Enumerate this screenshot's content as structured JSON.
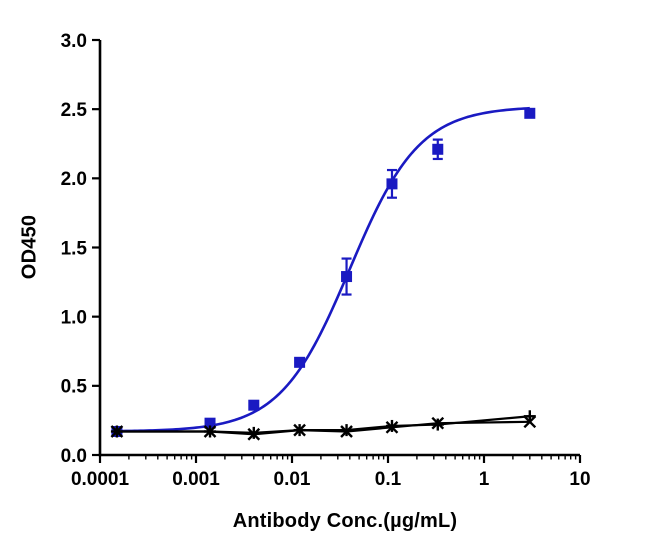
{
  "figure": {
    "background": "#ffffff",
    "axis_color": "#000000"
  },
  "chart_data": {
    "type": "line",
    "title": "",
    "xlabel": "Antibody Conc.(µg/mL)",
    "ylabel": "OD450",
    "x_scale": "log",
    "grid": false,
    "legend": "none",
    "xlim": [
      0.0001,
      10
    ],
    "ylim": [
      0,
      3
    ],
    "x_ticks": [
      0.0001,
      0.001,
      0.01,
      0.1,
      1,
      10
    ],
    "x_tick_labels": [
      "0.0001",
      "0.001",
      "0.01",
      "0.1",
      "1",
      "10"
    ],
    "y_ticks": [
      0,
      0.5,
      1,
      1.5,
      2,
      2.5,
      3
    ],
    "y_tick_labels": [
      "0.0",
      "0.5",
      "1.0",
      "1.5",
      "2.0",
      "2.5",
      "3.0"
    ],
    "x": [
      0.00015,
      0.0014,
      0.004,
      0.012,
      0.037,
      0.11,
      0.33,
      3
    ],
    "series": [
      {
        "name": "antibody-blue-squares",
        "color": "#1a1ac2",
        "marker": "square",
        "line": "sigmoid-fit",
        "fit": {
          "type": "4pl",
          "bottom": 0.17,
          "top": 2.52,
          "ec50": 0.04,
          "hill": 1.2
        },
        "values": [
          0.17,
          0.23,
          0.36,
          0.67,
          1.29,
          1.96,
          2.21,
          2.47
        ],
        "errors": [
          0,
          0,
          0,
          0.03,
          0.13,
          0.1,
          0.07,
          0.02
        ]
      },
      {
        "name": "control-black-x",
        "color": "#000000",
        "marker": "x",
        "line": "straight",
        "values": [
          0.17,
          0.17,
          0.15,
          0.18,
          0.17,
          0.2,
          0.23,
          0.24
        ],
        "errors": [
          0,
          0,
          0,
          0,
          0,
          0,
          0,
          0
        ]
      },
      {
        "name": "control-black-plus",
        "color": "#000000",
        "marker": "plus",
        "line": "straight",
        "values": [
          0.17,
          0.17,
          0.16,
          0.18,
          0.18,
          0.21,
          0.22,
          0.28
        ],
        "errors": [
          0,
          0,
          0,
          0,
          0,
          0,
          0,
          0
        ]
      }
    ]
  }
}
